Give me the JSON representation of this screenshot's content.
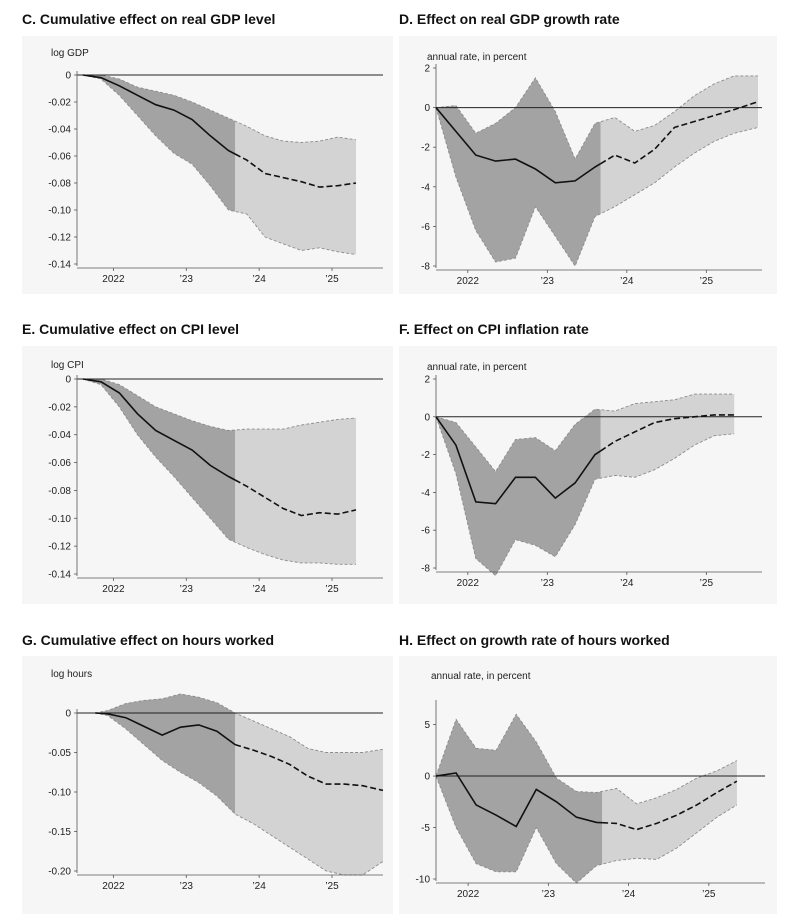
{
  "style": {
    "dark_band": "#a3a3a3",
    "light_band": "#d3d3d3",
    "band_edge": "#8c8c8c",
    "line": "#111111"
  },
  "chart_data": [
    {
      "id": "C",
      "type": "area",
      "title": "C. Cumulative effect on real GDP level",
      "ylabel": "log GDP",
      "xlabel": "",
      "xlim": [
        2021.5,
        2025.7
      ],
      "ylim": [
        -0.14,
        0
      ],
      "yticks": [
        0,
        -0.02,
        -0.04,
        -0.06,
        -0.08,
        -0.1,
        -0.12,
        -0.14
      ],
      "ytick_labels": [
        "0",
        "-0.02",
        "-0.04",
        "-0.06",
        "-0.08",
        "-0.10",
        "-0.12",
        "-0.14"
      ],
      "xticks": [
        2022,
        2023,
        2024,
        2025
      ],
      "xtick_labels": [
        "2022",
        "’23",
        "’24",
        "’25"
      ],
      "split_x": 2023.67,
      "x": [
        2021.58,
        2021.83,
        2022.08,
        2022.33,
        2022.58,
        2022.83,
        2023.08,
        2023.33,
        2023.58,
        2023.83,
        2024.08,
        2024.33,
        2024.58,
        2024.83,
        2025.08,
        2025.33
      ],
      "median": [
        0,
        -0.002,
        -0.008,
        -0.015,
        -0.022,
        -0.026,
        -0.033,
        -0.045,
        -0.056,
        -0.063,
        -0.073,
        -0.076,
        -0.079,
        -0.083,
        -0.082,
        -0.08
      ],
      "lower": [
        0,
        -0.003,
        -0.015,
        -0.03,
        -0.045,
        -0.058,
        -0.066,
        -0.082,
        -0.1,
        -0.103,
        -0.12,
        -0.125,
        -0.13,
        -0.128,
        -0.131,
        -0.133
      ],
      "upper": [
        0,
        0,
        -0.003,
        -0.009,
        -0.012,
        -0.015,
        -0.02,
        -0.026,
        -0.032,
        -0.038,
        -0.045,
        -0.049,
        -0.05,
        -0.049,
        -0.046,
        -0.048
      ]
    },
    {
      "id": "D",
      "type": "area",
      "title": "D. Effect on real GDP growth rate",
      "ylabel": "annual rate, in percent",
      "xlabel": "",
      "xlim": [
        2021.6,
        2025.7
      ],
      "ylim": [
        -8,
        2
      ],
      "yticks": [
        2,
        0,
        -2,
        -4,
        -6,
        -8
      ],
      "ytick_labels": [
        "2",
        "0",
        "-2",
        "-4",
        "-6",
        "-8"
      ],
      "xticks": [
        2022,
        2023,
        2024,
        2025
      ],
      "xtick_labels": [
        "2022",
        "’23",
        "’24",
        "’25"
      ],
      "split_x": 2023.67,
      "x": [
        2021.6,
        2021.85,
        2022.1,
        2022.35,
        2022.6,
        2022.85,
        2023.1,
        2023.35,
        2023.6,
        2023.85,
        2024.1,
        2024.35,
        2024.6,
        2024.85,
        2025.1,
        2025.35,
        2025.65
      ],
      "median": [
        0,
        -1.2,
        -2.4,
        -2.7,
        -2.6,
        -3.1,
        -3.8,
        -3.7,
        -3.0,
        -2.4,
        -2.8,
        -2.1,
        -1.0,
        -0.7,
        -0.4,
        -0.1,
        0.3
      ],
      "lower": [
        0,
        -3.5,
        -6.2,
        -7.8,
        -7.6,
        -5.0,
        -6.5,
        -8.0,
        -5.5,
        -5.0,
        -4.4,
        -3.8,
        -3.0,
        -2.3,
        -1.7,
        -1.3,
        -1.0
      ],
      "upper": [
        0,
        0.1,
        -1.3,
        -0.8,
        0,
        1.5,
        -0.2,
        -2.6,
        -0.8,
        -0.5,
        -1.2,
        -0.9,
        -0.2,
        0.6,
        1.2,
        1.6,
        1.6
      ]
    },
    {
      "id": "E",
      "type": "area",
      "title": "E. Cumulative effect on CPI level",
      "ylabel": "log CPI",
      "xlabel": "",
      "xlim": [
        2021.5,
        2025.7
      ],
      "ylim": [
        -0.14,
        0
      ],
      "yticks": [
        0,
        -0.02,
        -0.04,
        -0.06,
        -0.08,
        -0.1,
        -0.12,
        -0.14
      ],
      "ytick_labels": [
        "0",
        "-0.02",
        "-0.04",
        "-0.06",
        "-0.08",
        "-0.10",
        "-0.12",
        "-0.14"
      ],
      "xticks": [
        2022,
        2023,
        2024,
        2025
      ],
      "xtick_labels": [
        "2022",
        "’23",
        "’24",
        "’25"
      ],
      "split_x": 2023.67,
      "x": [
        2021.58,
        2021.83,
        2022.08,
        2022.33,
        2022.58,
        2022.83,
        2023.08,
        2023.33,
        2023.58,
        2023.83,
        2024.08,
        2024.33,
        2024.58,
        2024.83,
        2025.08,
        2025.33
      ],
      "median": [
        0,
        -0.002,
        -0.01,
        -0.025,
        -0.037,
        -0.044,
        -0.051,
        -0.062,
        -0.07,
        -0.077,
        -0.085,
        -0.093,
        -0.098,
        -0.096,
        -0.097,
        -0.094
      ],
      "lower": [
        0,
        -0.004,
        -0.02,
        -0.04,
        -0.056,
        -0.07,
        -0.085,
        -0.1,
        -0.115,
        -0.121,
        -0.126,
        -0.13,
        -0.132,
        -0.132,
        -0.133,
        -0.133
      ],
      "upper": [
        0,
        0,
        -0.004,
        -0.012,
        -0.02,
        -0.025,
        -0.03,
        -0.034,
        -0.037,
        -0.036,
        -0.036,
        -0.036,
        -0.033,
        -0.031,
        -0.029,
        -0.028
      ]
    },
    {
      "id": "F",
      "type": "area",
      "title": "F. Effect on CPI inflation rate",
      "ylabel": "annual rate, in percent",
      "xlabel": "",
      "xlim": [
        2021.6,
        2025.7
      ],
      "ylim": [
        -8,
        2
      ],
      "yticks": [
        2,
        0,
        -2,
        -4,
        -6,
        -8
      ],
      "ytick_labels": [
        "2",
        "0",
        "-2",
        "-4",
        "-6",
        "-8"
      ],
      "xticks": [
        2022,
        2023,
        2024,
        2025
      ],
      "xtick_labels": [
        "2022",
        "’23",
        "’24",
        "’25"
      ],
      "split_x": 2023.67,
      "x": [
        2021.6,
        2021.85,
        2022.1,
        2022.35,
        2022.6,
        2022.85,
        2023.1,
        2023.35,
        2023.6,
        2023.85,
        2024.1,
        2024.35,
        2024.6,
        2024.85,
        2025.1,
        2025.35
      ],
      "median": [
        0,
        -1.5,
        -4.5,
        -4.6,
        -3.2,
        -3.2,
        -4.3,
        -3.5,
        -2.0,
        -1.3,
        -0.8,
        -0.3,
        -0.1,
        0,
        0.1,
        0.1
      ],
      "lower": [
        0,
        -3.0,
        -7.5,
        -8.4,
        -6.5,
        -6.8,
        -7.4,
        -5.7,
        -3.3,
        -3.1,
        -3.2,
        -2.8,
        -2.2,
        -1.5,
        -1.0,
        -0.9
      ],
      "upper": [
        0,
        -0.3,
        -1.6,
        -2.9,
        -1.2,
        -1.1,
        -1.8,
        -0.4,
        0.4,
        0.3,
        0.7,
        0.8,
        0.9,
        1.2,
        1.2,
        1.2
      ]
    },
    {
      "id": "G",
      "type": "area",
      "title": "G. Cumulative effect on hours worked",
      "ylabel": "log hours",
      "xlabel": "",
      "xlim": [
        2021.5,
        2025.7
      ],
      "ylim": [
        -0.2,
        0
      ],
      "yticks": [
        0,
        -0.05,
        -0.1,
        -0.15,
        -0.2
      ],
      "ytick_labels": [
        "0",
        "-0.05",
        "-0.10",
        "-0.15",
        "-0.20"
      ],
      "xticks": [
        2022,
        2023,
        2024,
        2025
      ],
      "xtick_labels": [
        "2022",
        "’23",
        "’24",
        "’25"
      ],
      "split_x": 2023.67,
      "x": [
        2021.75,
        2021.92,
        2022.17,
        2022.42,
        2022.67,
        2022.92,
        2023.17,
        2023.42,
        2023.67,
        2023.92,
        2024.17,
        2024.42,
        2024.67,
        2024.92,
        2025.17,
        2025.42,
        2025.7
      ],
      "median": [
        0,
        -0.001,
        -0.006,
        -0.017,
        -0.028,
        -0.018,
        -0.015,
        -0.023,
        -0.04,
        -0.047,
        -0.055,
        -0.065,
        -0.08,
        -0.09,
        -0.09,
        -0.092,
        -0.098
      ],
      "lower": [
        0,
        -0.003,
        -0.02,
        -0.04,
        -0.06,
        -0.075,
        -0.088,
        -0.105,
        -0.128,
        -0.14,
        -0.155,
        -0.17,
        -0.185,
        -0.2,
        -0.205,
        -0.205,
        -0.188
      ],
      "upper": [
        0,
        0.003,
        0.012,
        0.016,
        0.018,
        0.024,
        0.02,
        0.013,
        0,
        -0.01,
        -0.02,
        -0.03,
        -0.045,
        -0.05,
        -0.05,
        -0.05,
        -0.046
      ]
    },
    {
      "id": "H",
      "type": "area",
      "title": "H. Effect on growth rate of hours worked",
      "ylabel": "annual rate, in percent",
      "xlabel": "",
      "xlim": [
        2021.6,
        2025.7
      ],
      "ylim": [
        -10,
        7
      ],
      "yticks": [
        5,
        0,
        -5,
        -10
      ],
      "ytick_labels": [
        "5",
        "0",
        "-5",
        "-10"
      ],
      "xticks": [
        2022,
        2023,
        2024,
        2025
      ],
      "xtick_labels": [
        "2022",
        "’23",
        "’24",
        "’25"
      ],
      "split_x": 2023.67,
      "x": [
        2021.6,
        2021.85,
        2022.1,
        2022.35,
        2022.6,
        2022.85,
        2023.1,
        2023.35,
        2023.6,
        2023.85,
        2024.1,
        2024.35,
        2024.6,
        2024.85,
        2025.1,
        2025.35
      ],
      "median": [
        0,
        0.3,
        -2.8,
        -3.8,
        -4.9,
        -1.3,
        -2.5,
        -4.0,
        -4.5,
        -4.6,
        -5.2,
        -4.6,
        -3.8,
        -2.8,
        -1.6,
        -0.5
      ],
      "lower": [
        0,
        -5.0,
        -8.5,
        -9.3,
        -9.3,
        -5.0,
        -8.5,
        -10.4,
        -8.7,
        -8.2,
        -8.0,
        -8.1,
        -7.0,
        -5.5,
        -4.0,
        -2.8
      ],
      "upper": [
        0,
        5.5,
        2.7,
        2.5,
        6.0,
        3.3,
        -0.2,
        -1.5,
        -1.6,
        -1.2,
        -2.7,
        -2.1,
        -1.3,
        -0.2,
        0.5,
        1.5
      ]
    }
  ]
}
